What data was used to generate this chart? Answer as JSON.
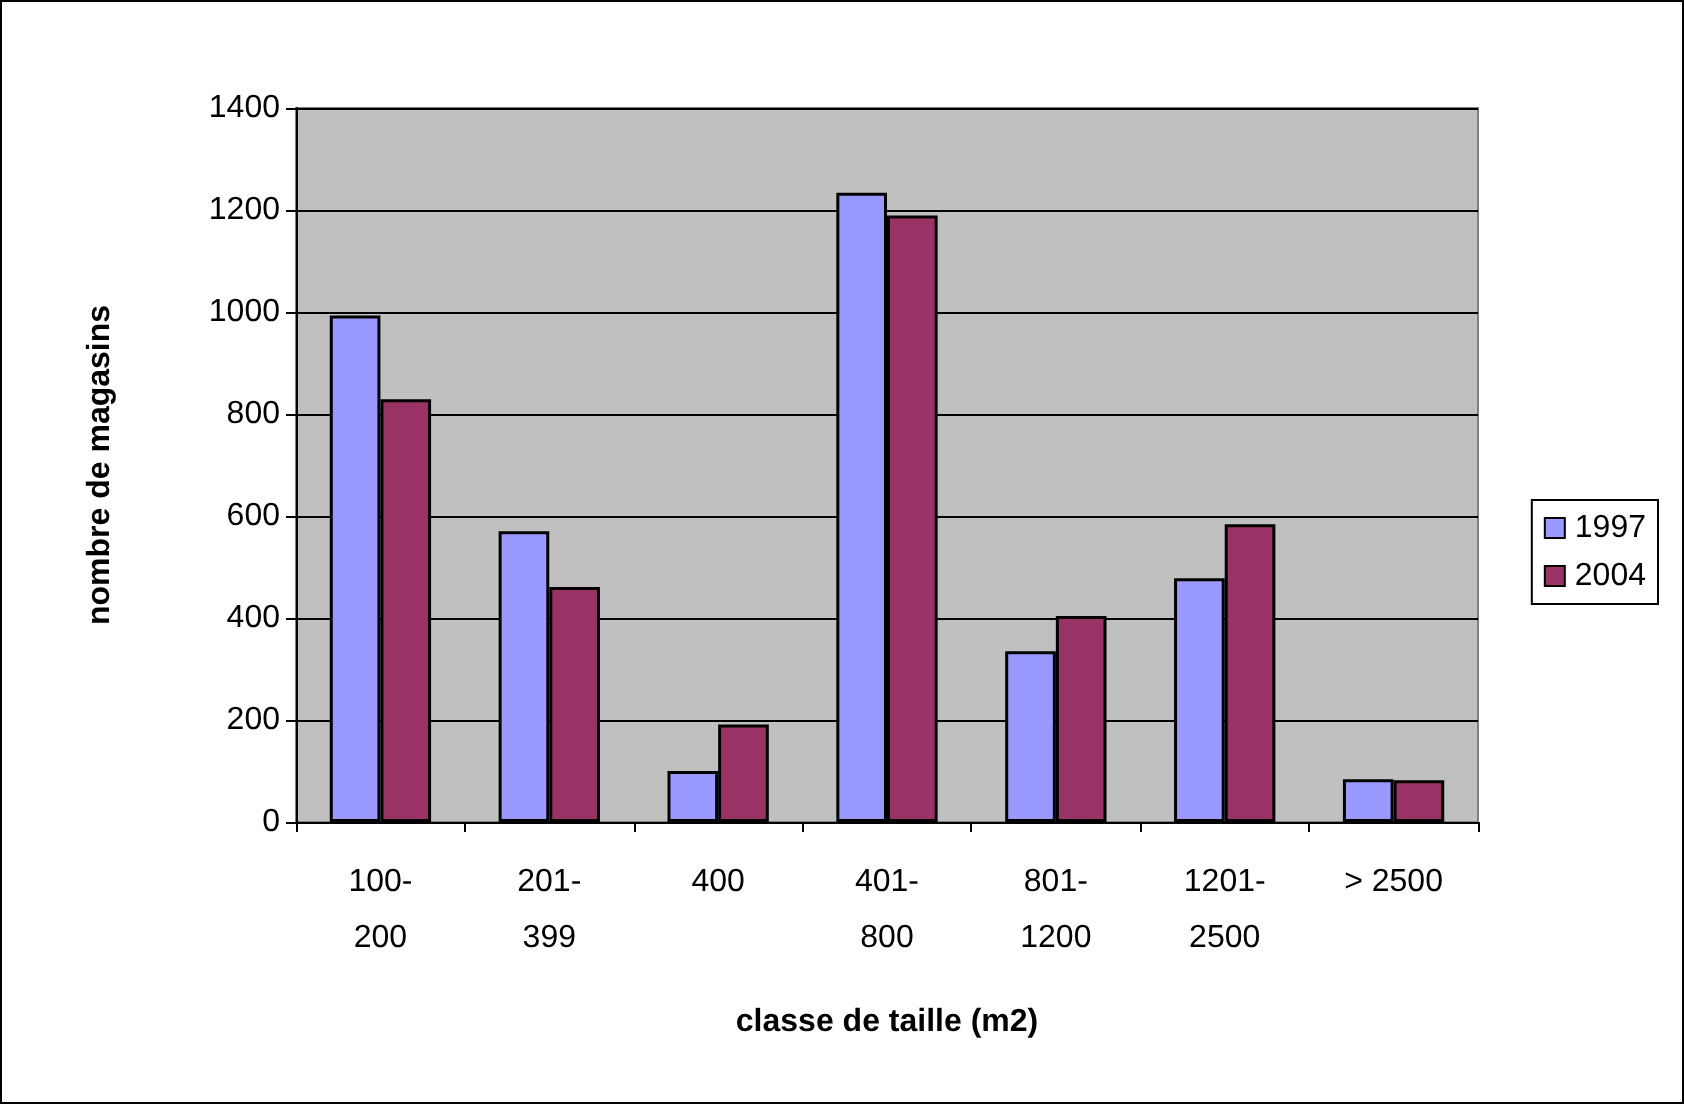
{
  "chart_data": {
    "type": "bar",
    "xlabel": "classe de taille (m2)",
    "ylabel": "nombre de magasins",
    "categories": [
      "100-200",
      "201-399",
      "400",
      "401-800",
      "801-1200",
      "1201-2500",
      "> 2500"
    ],
    "series": [
      {
        "name": "1997",
        "color": "#9999ff",
        "values": [
          993,
          570,
          100,
          1234,
          335,
          478,
          84
        ]
      },
      {
        "name": "2004",
        "color": "#993366",
        "values": [
          829,
          461,
          191,
          1189,
          404,
          584,
          82
        ]
      }
    ],
    "ylim": [
      0,
      1400
    ],
    "yticks": [
      0,
      200,
      400,
      600,
      800,
      1000,
      1200,
      1400
    ],
    "grid": "y",
    "legend": "right"
  }
}
